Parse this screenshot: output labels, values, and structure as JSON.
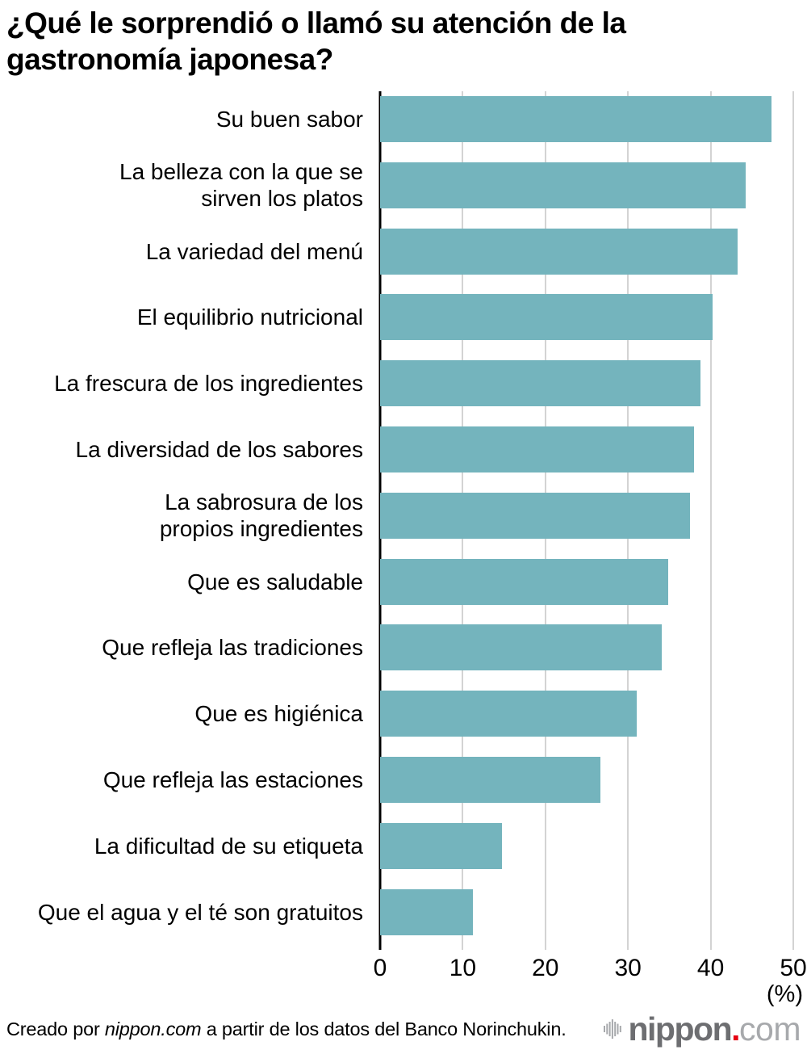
{
  "title": "¿Qué le sorprendió o llamó su atención de la gastronomía japonesa?",
  "chart_data": {
    "type": "bar",
    "orientation": "horizontal",
    "title": "¿Qué le sorprendió o llamó su atención de la gastronomía japonesa?",
    "categories": [
      "Su buen sabor",
      "La belleza con la que se sirven los platos",
      "La variedad del menú",
      "El equilibrio nutricional",
      "La frescura de los ingredientes",
      "La diversidad de los sabores",
      "La sabrosura de los propios ingredientes",
      "Que es saludable",
      "Que refleja las tradiciones",
      "Que es higiénica",
      "Que refleja las estaciones",
      "La dificultad de su etiqueta",
      "Que el agua y el té son gratuitos"
    ],
    "values": [
      45.8,
      42.8,
      41.9,
      38.9,
      37.5,
      36.8,
      36.3,
      33.7,
      33.0,
      30.1,
      25.8,
      14.3,
      10.9
    ],
    "xlabel": "(%)",
    "ylabel": "",
    "xlim": [
      0,
      50
    ],
    "xticks": [
      0,
      10,
      20,
      30,
      40,
      50
    ],
    "grid": "vertical",
    "legend": "none"
  },
  "labels_lines": [
    [
      "Su buen sabor"
    ],
    [
      "La belleza con la que se",
      "sirven los platos"
    ],
    [
      "La variedad del menú"
    ],
    [
      "El equilibrio nutricional"
    ],
    [
      "La frescura de los ingredientes"
    ],
    [
      "La diversidad de los sabores"
    ],
    [
      "La sabrosura de los",
      "propios ingredientes"
    ],
    [
      "Que es saludable"
    ],
    [
      "Que refleja las tradiciones"
    ],
    [
      "Que es higiénica"
    ],
    [
      "Que refleja las estaciones"
    ],
    [
      "La dificultad de su etiqueta"
    ],
    [
      "Que el agua y el té son gratuitos"
    ]
  ],
  "axis": {
    "tick_labels": [
      "0",
      "10",
      "20",
      "30",
      "40",
      "50"
    ],
    "unit_label": "(%)"
  },
  "footer": {
    "credit_prefix": "Creado por ",
    "credit_italic": "nippon.com",
    "credit_suffix": " a partir de los datos del Banco Norinchukin.",
    "logo_name": "nippon",
    "logo_dot": ".",
    "logo_tld": "com"
  },
  "colors": {
    "bar": "#74b4bd",
    "gridline": "#d3d3d3",
    "axis": "#000000",
    "text": "#000000",
    "logo_gray": "#6d6e71",
    "logo_light": "#a7a9ac",
    "logo_red": "#e60012"
  }
}
